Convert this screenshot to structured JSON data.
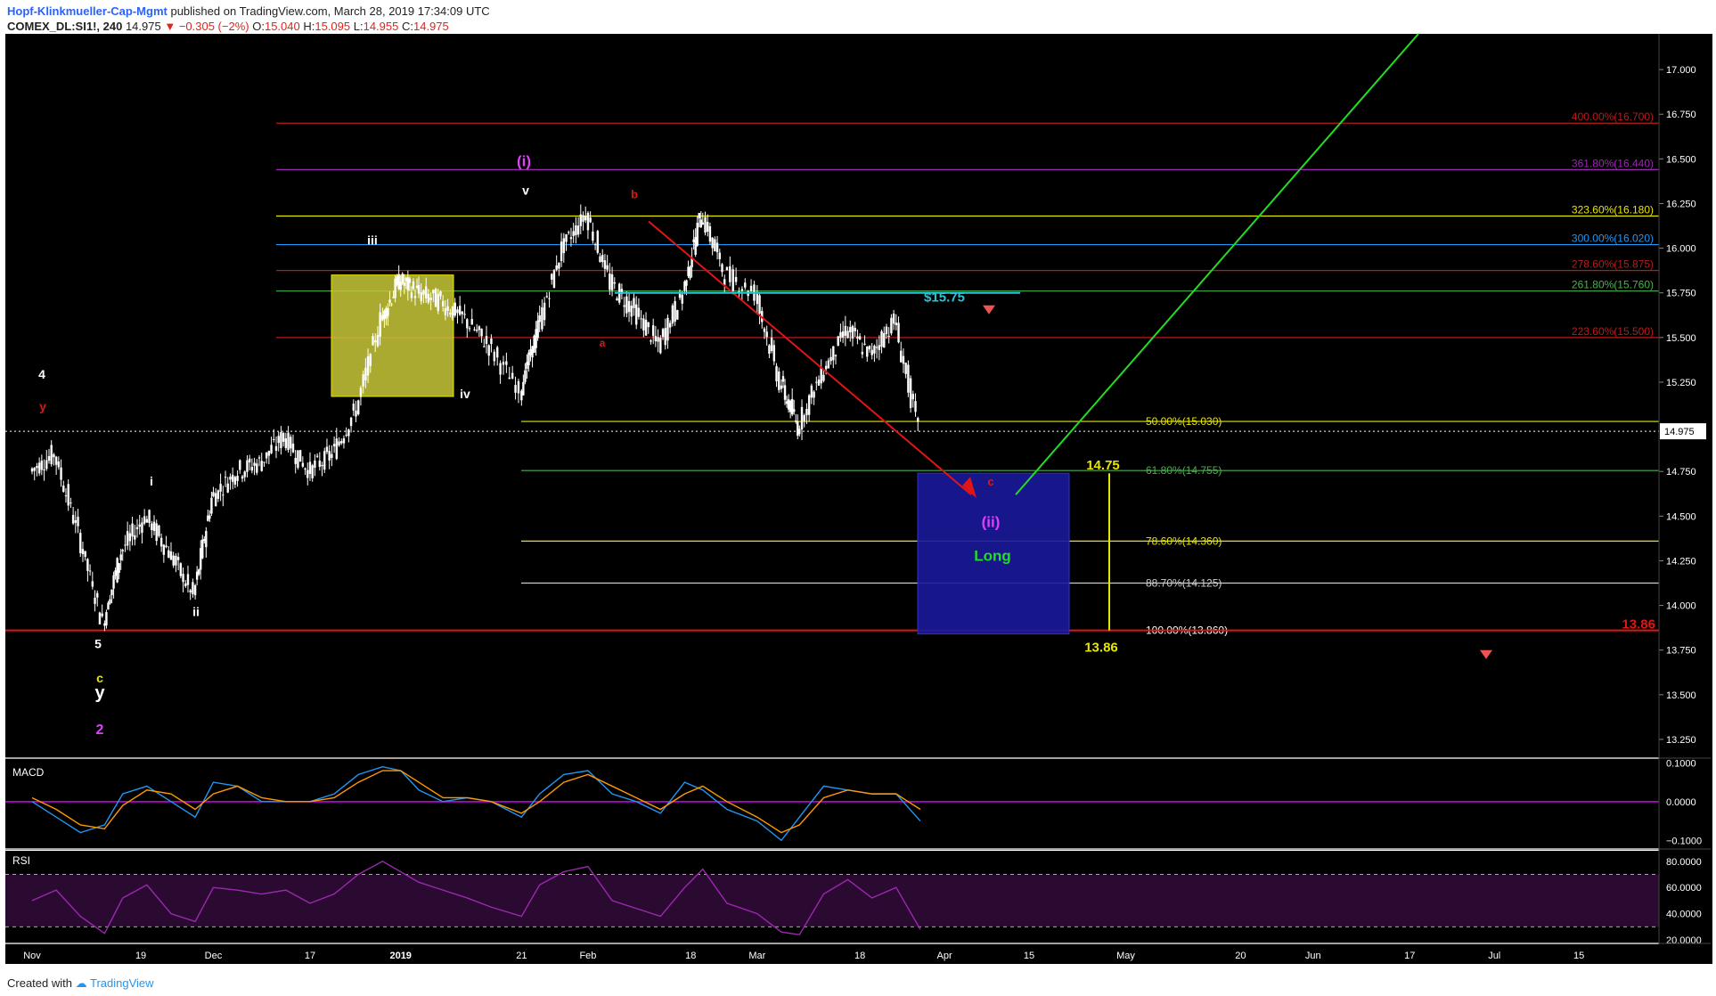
{
  "header": {
    "author": "Hopf-Klinkmueller-Cap-Mgmt",
    "published": "published on TradingView.com, March 28, 2019 17:34:09 UTC",
    "symbol": "COMEX_DL:SI1!, 240",
    "last": "14.975",
    "change": "▼ −0.305 (−2%)",
    "o_label": "O:",
    "o_val": "15.040",
    "h_label": "H:",
    "h_val": "15.095",
    "l_label": "L:",
    "l_val": "14.955",
    "c_label": "C:",
    "c_val": "14.975"
  },
  "footer": {
    "created_with": "Created with",
    "brand": "TradingView"
  },
  "colors": {
    "background": "#000000",
    "candles": "#ffffff",
    "fib_yellow": "#e6e600",
    "fib_red": "#b71c1c",
    "fib_purple": "#9c27b0",
    "fib_blue": "#2196f3",
    "fib_green": "#4caf50",
    "trend_red": "#e01515",
    "trend_green": "#22dd22",
    "zone_blue": "#1a1a9a",
    "zone_yellow": "#c8c83a",
    "macd_line": "#2196f3",
    "signal_line": "#ff9800",
    "rsi_line": "#9c27b0"
  },
  "chart_data": [
    {
      "type": "line",
      "panel": "price",
      "symbol": "COMEX_DL:SI1!",
      "interval": "240",
      "ylim": [
        13.15,
        17.2
      ],
      "y_ticks": [
        "17.000",
        "16.750",
        "16.500",
        "16.250",
        "16.000",
        "15.750",
        "15.500",
        "15.250",
        "14.750",
        "14.500",
        "14.250",
        "14.000",
        "13.750",
        "13.500",
        "13.250"
      ],
      "x_ticks": [
        "Nov",
        "19",
        "Dec",
        "17",
        "2019",
        "21",
        "Feb",
        "18",
        "Mar",
        "18",
        "Apr",
        "15",
        "May",
        "20",
        "Jun",
        "17",
        "Jul",
        "15"
      ],
      "last_price_label": "14.975",
      "x": [
        "2018-11-01",
        "2018-11-05",
        "2018-11-09",
        "2018-11-13",
        "2018-11-16",
        "2018-11-20",
        "2018-11-24",
        "2018-11-28",
        "2018-12-01",
        "2018-12-05",
        "2018-12-09",
        "2018-12-13",
        "2018-12-17",
        "2018-12-21",
        "2018-12-25",
        "2018-12-29",
        "2019-01-01",
        "2019-01-04",
        "2019-01-08",
        "2019-01-12",
        "2019-01-16",
        "2019-01-21",
        "2019-01-24",
        "2019-01-28",
        "2019-02-01",
        "2019-02-05",
        "2019-02-09",
        "2019-02-13",
        "2019-02-17",
        "2019-02-20",
        "2019-02-24",
        "2019-03-01",
        "2019-03-05",
        "2019-03-08",
        "2019-03-12",
        "2019-03-16",
        "2019-03-20",
        "2019-03-24",
        "2019-03-28"
      ],
      "series": [
        {
          "values": [
            14.75,
            14.85,
            14.4,
            13.9,
            14.3,
            14.5,
            14.3,
            14.05,
            14.6,
            14.75,
            14.8,
            14.95,
            14.75,
            14.85,
            15.1,
            15.6,
            15.82,
            15.75,
            15.7,
            15.6,
            15.45,
            15.2,
            15.55,
            16.0,
            16.2,
            15.8,
            15.65,
            15.45,
            15.75,
            16.2,
            15.85,
            15.75,
            15.25,
            15.0,
            15.3,
            15.55,
            15.4,
            15.6,
            14.975
          ]
        }
      ],
      "fib_levels": [
        {
          "label": "400.00%(16.700)",
          "price": 16.7,
          "color": "#b71c1c"
        },
        {
          "label": "361.80%(16.440)",
          "price": 16.44,
          "color": "#9c27b0"
        },
        {
          "label": "323.60%(16.180)",
          "price": 16.18,
          "color": "#e6e600"
        },
        {
          "label": "300.00%(16.020)",
          "price": 16.02,
          "color": "#2196f3"
        },
        {
          "label": "278.60%(15.875)",
          "price": 15.875,
          "color": "#b71c1c"
        },
        {
          "label": "261.80%(15.760)",
          "price": 15.76,
          "color": "#4caf50"
        },
        {
          "label": "223.60%(15.500)",
          "price": 15.5,
          "color": "#b71c1c"
        },
        {
          "label": "50.00%(15.030)",
          "price": 15.03,
          "color": "#e6e600"
        },
        {
          "label": "61.80%(14.755)",
          "price": 14.755,
          "color": "#4caf50"
        },
        {
          "label": "78.60%(14.360)",
          "price": 14.36,
          "color": "#e6e600"
        },
        {
          "label": "88.70%(14.125)",
          "price": 14.125,
          "color": "#cccccc"
        },
        {
          "label": "100.00%(13.860)",
          "price": 13.86,
          "color": "#ffffff"
        }
      ],
      "wave_labels": [
        {
          "text": "4",
          "color": "#ffffff"
        },
        {
          "text": "y",
          "color": "#e01515"
        },
        {
          "text": "i",
          "color": "#ffffff"
        },
        {
          "text": "ii",
          "color": "#ffffff"
        },
        {
          "text": "iii",
          "color": "#ffffff"
        },
        {
          "text": "iv",
          "color": "#ffffff"
        },
        {
          "text": "v",
          "color": "#ffffff"
        },
        {
          "text": "(i)",
          "color": "#e040fb"
        },
        {
          "text": "a",
          "color": "#e01515"
        },
        {
          "text": "b",
          "color": "#e01515"
        },
        {
          "text": "c",
          "color": "#e01515"
        },
        {
          "text": "(ii)",
          "color": "#e040fb"
        },
        {
          "text": "5",
          "color": "#ffffff"
        },
        {
          "text": "c",
          "color": "#e6e600"
        },
        {
          "text": "y",
          "color": "#ffffff"
        },
        {
          "text": "2",
          "color": "#e040fb"
        }
      ],
      "annotations": [
        {
          "text": "$15.75",
          "color": "#26c6da"
        },
        {
          "text": "14.75",
          "color": "#e6e600"
        },
        {
          "text": "13.86",
          "color": "#e6e600"
        },
        {
          "text": "13.86",
          "color": "#e01515"
        },
        {
          "text": "Long",
          "color": "#22dd22"
        }
      ]
    },
    {
      "type": "line",
      "panel": "MACD",
      "title": "MACD",
      "y_ticks": [
        "0.1000",
        "0.0000",
        "−0.1000"
      ],
      "ylim": [
        -0.12,
        0.11
      ],
      "series": [
        {
          "name": "MACD",
          "values": [
            0.0,
            -0.04,
            -0.08,
            -0.06,
            0.02,
            0.04,
            0.0,
            -0.04,
            0.05,
            0.04,
            0.0,
            0.0,
            0.0,
            0.02,
            0.07,
            0.09,
            0.08,
            0.03,
            0.0,
            0.01,
            0.0,
            -0.04,
            0.02,
            0.07,
            0.08,
            0.02,
            0.0,
            -0.03,
            0.05,
            0.03,
            -0.02,
            -0.05,
            -0.1,
            -0.04,
            0.04,
            0.03,
            0.02,
            0.02,
            -0.05
          ]
        },
        {
          "name": "Signal",
          "values": [
            0.01,
            -0.02,
            -0.06,
            -0.07,
            -0.01,
            0.03,
            0.02,
            -0.02,
            0.02,
            0.04,
            0.01,
            0.0,
            0.0,
            0.01,
            0.05,
            0.08,
            0.08,
            0.05,
            0.01,
            0.01,
            0.0,
            -0.03,
            0.0,
            0.05,
            0.07,
            0.04,
            0.01,
            -0.02,
            0.02,
            0.04,
            0.0,
            -0.04,
            -0.08,
            -0.06,
            0.01,
            0.03,
            0.02,
            0.02,
            -0.02
          ]
        }
      ]
    },
    {
      "type": "line",
      "panel": "RSI",
      "title": "RSI",
      "y_ticks": [
        "80.0000",
        "60.0000",
        "40.0000",
        "20.0000"
      ],
      "ylim": [
        18,
        88
      ],
      "bands": [
        30,
        70
      ],
      "series": [
        {
          "name": "RSI",
          "values": [
            50,
            58,
            38,
            25,
            52,
            62,
            40,
            34,
            60,
            58,
            55,
            58,
            48,
            55,
            70,
            80,
            72,
            64,
            58,
            52,
            45,
            38,
            62,
            72,
            76,
            50,
            44,
            38,
            60,
            74,
            48,
            40,
            26,
            24,
            55,
            66,
            52,
            60,
            28
          ]
        }
      ]
    }
  ]
}
